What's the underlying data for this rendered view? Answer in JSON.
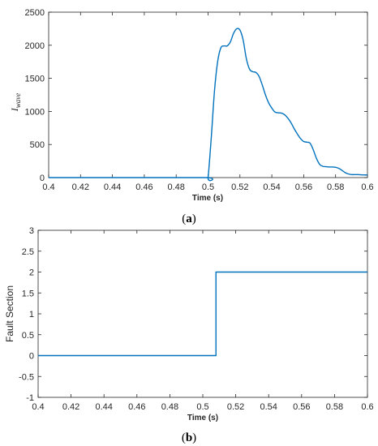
{
  "chart_data": [
    {
      "type": "line",
      "caption": {
        "prefix": "(",
        "letter": "a",
        "suffix": ")"
      },
      "xlabel": "Time (s)",
      "ylabel_main": "I",
      "ylabel_sub": "wave",
      "xlim": [
        0.4,
        0.6
      ],
      "ylim": [
        0,
        2500
      ],
      "xticks": [
        "0.4",
        "0.42",
        "0.44",
        "0.46",
        "0.48",
        "0.5",
        "0.52",
        "0.54",
        "0.56",
        "0.58",
        "0.6"
      ],
      "yticks": [
        "0",
        "500",
        "1000",
        "1500",
        "2000",
        "2500"
      ],
      "color": "#0072BD",
      "series": [
        {
          "x": [
            0.4,
            0.45,
            0.499,
            0.5,
            0.502,
            0.504,
            0.506,
            0.508,
            0.51,
            0.512,
            0.514,
            0.516,
            0.518,
            0.52,
            0.522,
            0.524,
            0.526,
            0.528,
            0.53,
            0.532,
            0.534,
            0.536,
            0.538,
            0.54,
            0.542,
            0.544,
            0.546,
            0.548,
            0.55,
            0.552,
            0.554,
            0.556,
            0.558,
            0.56,
            0.562,
            0.564,
            0.566,
            0.568,
            0.57,
            0.572,
            0.574,
            0.576,
            0.578,
            0.58,
            0.582,
            0.584,
            0.586,
            0.588,
            0.59,
            0.592,
            0.594,
            0.596,
            0.598,
            0.6
          ],
          "y": [
            0,
            0,
            0,
            0,
            600,
            1300,
            1750,
            1960,
            1990,
            1990,
            2050,
            2180,
            2250,
            2230,
            2080,
            1800,
            1640,
            1600,
            1590,
            1530,
            1400,
            1250,
            1130,
            1050,
            990,
            980,
            975,
            950,
            900,
            830,
            740,
            660,
            590,
            545,
            535,
            520,
            420,
            290,
            200,
            170,
            165,
            160,
            160,
            155,
            140,
            110,
            75,
            55,
            45,
            45,
            45,
            42,
            40,
            40
          ]
        }
      ]
    },
    {
      "type": "line",
      "caption": {
        "prefix": "(",
        "letter": "b",
        "suffix": ")"
      },
      "xlabel": "Time (s)",
      "ylabel": "Fault Section",
      "xlim": [
        0.4,
        0.6
      ],
      "ylim": [
        -1,
        3
      ],
      "xticks": [
        "0.4",
        "0.42",
        "0.44",
        "0.46",
        "0.48",
        "0.5",
        "0.52",
        "0.54",
        "0.56",
        "0.58",
        "0.6"
      ],
      "yticks": [
        "-1",
        "-0.5",
        "0",
        "0.5",
        "1",
        "1.5",
        "2",
        "2.5",
        "3"
      ],
      "color": "#0072BD",
      "series": [
        {
          "x": [
            0.4,
            0.508,
            0.508,
            0.6
          ],
          "y": [
            0,
            0,
            2,
            2
          ]
        }
      ]
    }
  ]
}
